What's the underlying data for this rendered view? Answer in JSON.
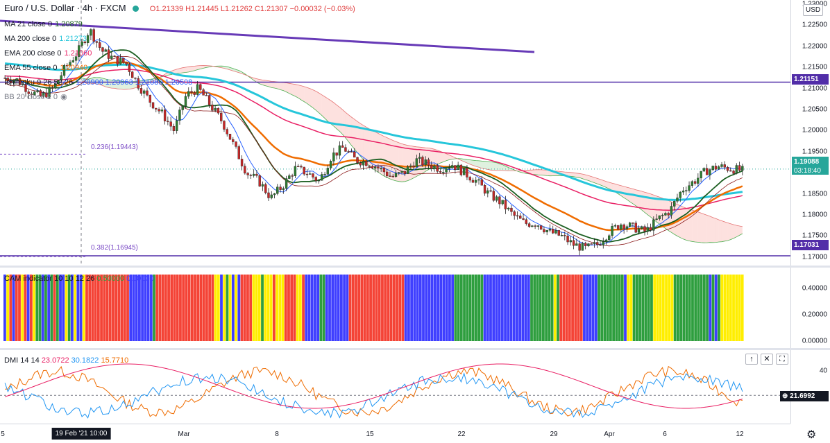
{
  "header": {
    "symbol": "Euro / U.S. Dollar · 4h · FXCM",
    "ohlc": "O1.21339 H1.21445 L1.21262 C1.21307 −0.00032 (−0.03%)"
  },
  "legend": [
    {
      "name": "MA 21 close 0",
      "value": "1.20879",
      "color": "#1b5e20"
    },
    {
      "name": "MA 200 close 0",
      "value": "1.21273",
      "color": "#26c6da"
    },
    {
      "name": "EMA 200 close 0",
      "value": "1.21060",
      "color": "#e91e63"
    },
    {
      "name": "EMA 55 close 0",
      "value": "1.20940",
      "color": "#ef6c00"
    },
    {
      "name": "Ichimoku 9 26 52 26",
      "value": "1.20900  1.20963  1.21089  1.20508",
      "color": "#2962ff"
    },
    {
      "name": "BB 20 close 2 0",
      "value": "",
      "color": "#787b86"
    }
  ],
  "currency_button": "USD",
  "price_axis_ticks": [
    "1.23000",
    "1.22500",
    "1.22000",
    "1.21500",
    "1.21000",
    "1.20500",
    "1.20000",
    "1.19500",
    "1.19000",
    "1.18500",
    "1.18000",
    "1.17500",
    "1.17000"
  ],
  "price_tags": {
    "level_top": "1.21151",
    "current_price": "1.19088",
    "countdown": "03:18:40",
    "level_bottom": "1.17031"
  },
  "fib_labels": {
    "fib_236": "0.236(1.19443)",
    "fib_382": "0.382(1.16945)"
  },
  "cam_indicator": {
    "legend": "CAM indicator 10 10 12 26",
    "value1": "0.50000",
    "value2": "0.00000",
    "axis_ticks": [
      "0.40000",
      "0.20000",
      "0.00000"
    ],
    "colors": {
      "red": "#f44336",
      "blue": "#3f3fff",
      "green": "#2e9e3e",
      "yellow": "#ffee00"
    },
    "sequence": "BYRBRRYRBRYGGBGBGRGBBYGBYBBYRRRRRRRRRRRRRRRBBBBBBBBGRRRRRRRRRRRRRRRRRRRRYYBYGYBYBRRRRYYYGYYYRYYYRRRRYYRBBBBBGGBBBBBBBBRRRRRRRRRRRRRRRRRRRBBBBBBBBBBBBBBBBBGGGGGGGGGGBBBBBBBBBBBBBBBBGGGGGGGGYGRRRRRRRRBBBBBGGGGGGGGGBYYGGGGGGGYYYYYYYGGGGGGGGGGGGBGBGYYYYYYYY"
  },
  "dmi": {
    "legend": "DMI 14 14",
    "adx": "23.0722",
    "plus_di": "30.1822",
    "minus_di": "15.7710",
    "adx_color": "#e91e63",
    "plus_color": "#2196f3",
    "minus_color": "#ef6c00",
    "axis_tick": "40",
    "current_tag": "21.6992"
  },
  "time_axis": {
    "labels": [
      "5",
      "Mar",
      "8",
      "15",
      "22",
      "29",
      "Apr",
      "6",
      "12"
    ],
    "cursor_label": "19 Feb '21   10:00"
  },
  "chart_data": {
    "type": "candlestick",
    "title": "Euro / U.S. Dollar · 4h · FXCM",
    "ylim": [
      1.168,
      1.231
    ],
    "legend_position": "top-left",
    "grid": false,
    "key_levels": [
      1.21151,
      1.17031
    ],
    "fib_levels": [
      {
        "ratio": 0.236,
        "price": 1.19443
      },
      {
        "ratio": 0.382,
        "price": 1.16945
      }
    ],
    "trendline": {
      "from": [
        "5",
        1.2265
      ],
      "to": [
        "29",
        1.2185
      ]
    },
    "close_path": [
      1.2125,
      1.212,
      1.2095,
      1.208,
      1.21,
      1.215,
      1.2185,
      1.224,
      1.219,
      1.217,
      1.216,
      1.211,
      1.207,
      1.204,
      1.2,
      1.2085,
      1.21,
      1.206,
      1.202,
      1.196,
      1.19,
      1.188,
      1.184,
      1.187,
      1.191,
      1.19,
      1.188,
      1.194,
      1.196,
      1.193,
      1.1925,
      1.191,
      1.189,
      1.19,
      1.193,
      1.192,
      1.191,
      1.192,
      1.19,
      1.188,
      1.185,
      1.183,
      1.18,
      1.178,
      1.178,
      1.176,
      1.175,
      1.173,
      1.172,
      1.173,
      1.176,
      1.178,
      1.177,
      1.176,
      1.179,
      1.181,
      1.186,
      1.188,
      1.1905,
      1.1915,
      1.191,
      1.1905
    ]
  }
}
